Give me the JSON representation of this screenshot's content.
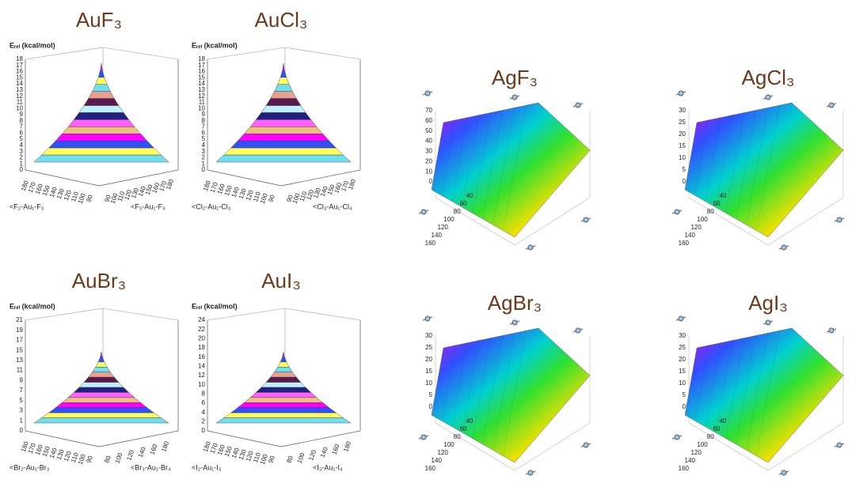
{
  "panels": [
    {
      "title": "AuF₃",
      "y_label": "Eᵣₑₗ (kcal/mol)",
      "yticks": [
        0,
        1,
        2,
        3,
        4,
        5,
        6,
        7,
        8,
        9,
        10,
        11,
        12,
        13,
        14,
        15,
        16,
        17,
        18
      ],
      "xticks": [
        180,
        170,
        160,
        150,
        140,
        130,
        120,
        110,
        100,
        90
      ],
      "zticks": [
        90,
        100,
        110,
        120,
        130,
        140,
        150,
        160,
        170,
        180
      ],
      "x_label": "<F₂-Au₁-F₃",
      "z_label": "<F₃-Au₁-F₄"
    },
    {
      "title": "AuCl₃",
      "y_label": "Eᵣₑₗ (kcal/mol)",
      "yticks": [
        0,
        1,
        2,
        3,
        4,
        5,
        6,
        7,
        8,
        9,
        10,
        11,
        12,
        13,
        14,
        15,
        16,
        17,
        18
      ],
      "xticks": [
        180,
        170,
        160,
        150,
        140,
        130,
        120,
        110,
        100,
        90
      ],
      "zticks": [
        90,
        100,
        110,
        120,
        130,
        140,
        150,
        160,
        170,
        180
      ],
      "x_label": "<Cl₂-Au₁-Cl₃",
      "z_label": "<Cl₃-Au₁-Cl₄"
    },
    {
      "title": "AuBr₃",
      "y_label": "Eᵣₑₗ (kcal/mol)",
      "yticks": [
        0,
        1,
        3,
        5,
        7,
        9,
        11,
        13,
        15,
        17,
        19,
        21
      ],
      "xticks": [
        180,
        170,
        160,
        150,
        140,
        130,
        120,
        110,
        100,
        90
      ],
      "zticks": [
        80,
        100,
        120,
        140,
        160,
        180
      ],
      "x_label": "<Br₂-Au₁-Br₃",
      "z_label": "<Br₃-Au₁-Br₄"
    },
    {
      "title": "AuI₃",
      "y_label": "Eᵣₑₗ (kcal/mol)",
      "yticks": [
        0,
        2,
        4,
        6,
        8,
        10,
        12,
        14,
        16,
        18,
        20,
        22,
        24
      ],
      "xticks": [
        180,
        170,
        160,
        150,
        140,
        130,
        120,
        110,
        100,
        90
      ],
      "zticks": [
        80,
        100,
        120,
        140,
        160,
        180
      ],
      "x_label": "<I₂-Au₁-I₃",
      "z_label": "<I₃-Au₁-I₄"
    },
    {
      "title": "AgF₃",
      "yticks": [
        0,
        10,
        20,
        30,
        40,
        50,
        60,
        70
      ],
      "xticks": [
        40,
        60,
        80,
        100,
        120,
        140,
        160
      ]
    },
    {
      "title": "AgCl₃",
      "yticks": [
        0,
        5,
        10,
        15,
        20,
        25,
        30
      ],
      "xticks": [
        40,
        60,
        80,
        100,
        120,
        140,
        160
      ]
    },
    {
      "title": "AgBr₃",
      "yticks": [
        0,
        5,
        10,
        15,
        20,
        25,
        30
      ],
      "xticks": [
        40,
        60,
        80,
        100,
        120,
        140,
        160
      ]
    },
    {
      "title": "AgI₃",
      "yticks": [
        0,
        5,
        10,
        15,
        20,
        25,
        30
      ],
      "xticks": [
        40,
        60,
        80,
        100,
        120,
        140,
        160
      ]
    }
  ]
}
